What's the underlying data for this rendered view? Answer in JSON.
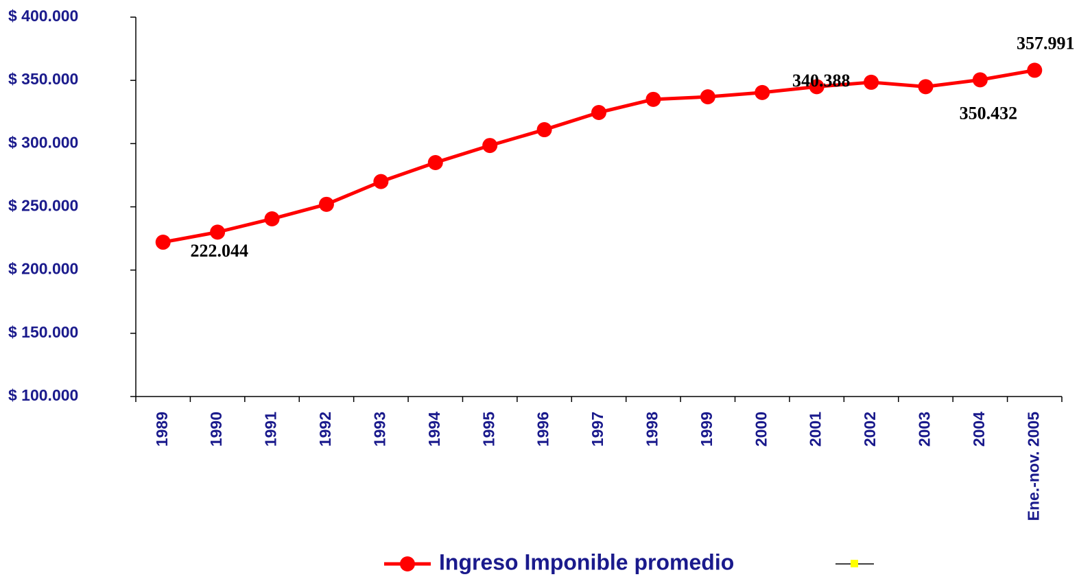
{
  "chart_data": {
    "type": "line",
    "categories": [
      "1989",
      "1990",
      "1991",
      "1992",
      "1993",
      "1994",
      "1995",
      "1996",
      "1997",
      "1998",
      "1999",
      "2000",
      "2001",
      "2002",
      "2003",
      "2004",
      "Ene.-nov. 2005"
    ],
    "series": [
      {
        "name": "Ingreso Imponible promedio",
        "color": "#ff0000",
        "values": [
          222044,
          230000,
          240500,
          252000,
          270000,
          285000,
          298500,
          311000,
          324600,
          335000,
          337000,
          340388,
          345000,
          348500,
          345000,
          350432,
          357991
        ],
        "value_labels": [
          "222.044",
          null,
          null,
          null,
          null,
          null,
          null,
          null,
          null,
          null,
          null,
          "340.388",
          null,
          null,
          null,
          "350.432",
          "357.991"
        ]
      }
    ],
    "ylim": [
      100000,
      400000
    ],
    "yticks": [
      {
        "value": 100000,
        "label": "$ 100.000"
      },
      {
        "value": 150000,
        "label": "$ 150.000"
      },
      {
        "value": 200000,
        "label": "$ 200.000"
      },
      {
        "value": 250000,
        "label": "$ 250.000"
      },
      {
        "value": 300000,
        "label": "$ 300.000"
      },
      {
        "value": 350000,
        "label": "$ 350.000"
      },
      {
        "value": 400000,
        "label": "$ 400.000"
      }
    ],
    "legend": "bottom"
  }
}
